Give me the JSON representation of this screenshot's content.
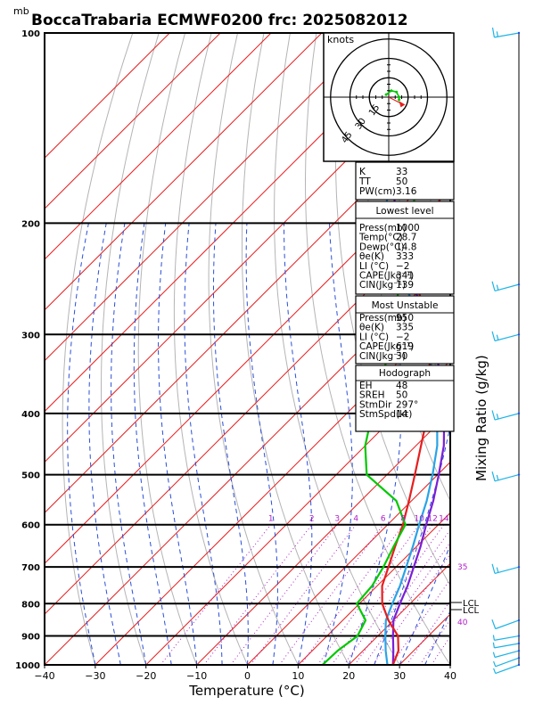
{
  "header": {
    "unit_mb": "mb",
    "title": "BoccaTrabaria ECMWF0200 frc: 2025082012"
  },
  "chart_data": {
    "type": "line",
    "title": "BoccaTrabaria ECMWF0200 frc: 2025082012",
    "xlabel": "Temperature (°C)",
    "ylabel": "mb",
    "right_label": "Mixing Ratio (g/kg)",
    "xlim": [
      -40,
      40
    ],
    "ylim_mb": [
      1000,
      100
    ],
    "log_pressure_axis": true,
    "x_ticks": [
      "−40",
      "−30",
      "−20",
      "−10",
      "0",
      "10",
      "20",
      "30",
      "40"
    ],
    "p_levels": [
      1000,
      900,
      800,
      700,
      600,
      500,
      400,
      300,
      200,
      100
    ],
    "p_labels": [
      "1000",
      "900",
      "800",
      "700",
      "600",
      "500",
      "400",
      "300",
      "200",
      "100"
    ],
    "mixing_ratio_lines": [
      1,
      2,
      3,
      4,
      6,
      8,
      10,
      12,
      14,
      16,
      18,
      20,
      25,
      30,
      35,
      40
    ],
    "mixing_ratio_top_labels": [
      "1",
      "2",
      "3",
      "4",
      "6",
      "8",
      "10",
      "12",
      "14",
      "16",
      "18",
      "20",
      "25",
      "30"
    ],
    "mixing_ratio_side_labels": [
      {
        "text": "35",
        "p": 700
      },
      {
        "text": "40",
        "p": 855
      }
    ],
    "lcl_labels": [
      "LCL",
      "LCL"
    ],
    "series": [
      {
        "name": "Temperature",
        "color": "#e61e1e",
        "points": [
          [
            28.7,
            1000
          ],
          [
            27,
            950
          ],
          [
            24,
            900
          ],
          [
            19,
            850
          ],
          [
            14.5,
            800
          ],
          [
            11,
            750
          ],
          [
            8.5,
            700
          ],
          [
            5.8,
            650
          ],
          [
            3.0,
            600
          ],
          [
            -0.5,
            550
          ],
          [
            -4.5,
            500
          ],
          [
            -9,
            450
          ],
          [
            -14,
            400
          ],
          [
            -21,
            350
          ],
          [
            -29,
            300
          ],
          [
            -36,
            270
          ],
          [
            -42,
            250
          ],
          [
            -52,
            200
          ],
          [
            -58,
            150
          ],
          [
            -62,
            120
          ],
          [
            -63,
            100
          ]
        ]
      },
      {
        "name": "Dewpoint",
        "color": "#00c800",
        "points": [
          [
            14.8,
            1000
          ],
          [
            15,
            950
          ],
          [
            16,
            900
          ],
          [
            14.5,
            850
          ],
          [
            9.5,
            800
          ],
          [
            9,
            750
          ],
          [
            7.5,
            700
          ],
          [
            5.5,
            650
          ],
          [
            3.5,
            600
          ],
          [
            -3,
            550
          ],
          [
            -14,
            500
          ],
          [
            -20,
            450
          ],
          [
            -25,
            400
          ],
          [
            -30,
            350
          ],
          [
            -37,
            300
          ],
          [
            -45,
            250
          ],
          [
            -55,
            200
          ],
          [
            -68,
            150
          ],
          [
            -78,
            120
          ],
          [
            -84,
            100
          ]
        ]
      },
      {
        "name": "Parcel",
        "color": "#7a1fd6",
        "points": [
          [
            28.7,
            1000
          ],
          [
            26,
            950
          ],
          [
            23,
            900
          ],
          [
            20,
            850
          ],
          [
            18,
            800
          ],
          [
            16,
            750
          ],
          [
            13.5,
            700
          ],
          [
            10.8,
            650
          ],
          [
            7.6,
            600
          ],
          [
            4.3,
            550
          ],
          [
            0.2,
            500
          ],
          [
            -4.5,
            450
          ],
          [
            -10.8,
            400
          ],
          [
            -18.8,
            350
          ],
          [
            -28.5,
            300
          ],
          [
            -42.5,
            250
          ],
          [
            -58,
            200
          ],
          [
            -74,
            150
          ],
          [
            -85,
            120
          ],
          [
            -91,
            100
          ]
        ]
      },
      {
        "name": "Virtual temperature",
        "color": "#2aa3e6",
        "points": [
          [
            27.6,
            1000
          ],
          [
            24.5,
            950
          ],
          [
            21.5,
            900
          ],
          [
            18.5,
            850
          ],
          [
            16.5,
            800
          ],
          [
            14.5,
            750
          ],
          [
            12,
            700
          ],
          [
            9.3,
            650
          ],
          [
            6.2,
            600
          ],
          [
            3.0,
            550
          ],
          [
            -1.0,
            500
          ],
          [
            -5.8,
            450
          ],
          [
            -12.2,
            400
          ],
          [
            -20.2,
            350
          ],
          [
            -30,
            300
          ],
          [
            -44,
            250
          ],
          [
            -59.5,
            200
          ],
          [
            -75.5,
            150
          ],
          [
            -86.5,
            120
          ],
          [
            -92.5,
            100
          ]
        ]
      }
    ],
    "hodograph": {
      "units": "knots",
      "ring_labels": [
        "15",
        "30",
        "45"
      ],
      "ring_values": [
        15,
        30,
        45
      ],
      "points": [
        [
          -2,
          2
        ],
        [
          2,
          5
        ],
        [
          6,
          4
        ],
        [
          8,
          0
        ],
        [
          8,
          -2
        ]
      ],
      "storm_motion_dir": 297,
      "storm_motion_kt": 14
    },
    "indices": {
      "general": [
        {
          "label": "K",
          "value": "33"
        },
        {
          "label": "TT",
          "value": "50"
        },
        {
          "label": "PW(cm)",
          "value": "3.16"
        }
      ],
      "lowest_level": {
        "header": "Lowest level",
        "rows": [
          {
            "label": "Press(mb)",
            "value": "1000"
          },
          {
            "label": "Temp(°C)",
            "value": "28.7"
          },
          {
            "label": "Dewp(°C)",
            "value": "14.8"
          },
          {
            "label": "θe(K)",
            "value": "333"
          },
          {
            "label": "LI (°C)",
            "value": "−2"
          },
          {
            "label": "CAPE(Jkg⁻¹)",
            "value": "341"
          },
          {
            "label": "CIN(Jkg⁻¹)",
            "value": "139"
          }
        ]
      },
      "most_unstable": {
        "header": "Most Unstable",
        "rows": [
          {
            "label": "Press(mb)",
            "value": "950"
          },
          {
            "label": "θe(K)",
            "value": "335"
          },
          {
            "label": "LI (°C)",
            "value": "−2"
          },
          {
            "label": "CAPE(Jkg⁻¹)",
            "value": "619"
          },
          {
            "label": "CIN(Jkg⁻¹)",
            "value": "30"
          }
        ]
      },
      "hodograph_box": {
        "header": "Hodograph",
        "rows": [
          {
            "label": "EH",
            "value": "48"
          },
          {
            "label": "SREH",
            "value": "50"
          },
          {
            "label": "StmDir",
            "value": "297°"
          },
          {
            "label": "StmSpd(kt)",
            "value": "14"
          }
        ]
      }
    },
    "wind_barbs": [
      {
        "p": 1000,
        "dir": 250,
        "kt": 5
      },
      {
        "p": 975,
        "dir": 250,
        "kt": 5
      },
      {
        "p": 950,
        "dir": 255,
        "kt": 5
      },
      {
        "p": 925,
        "dir": 260,
        "kt": 5
      },
      {
        "p": 900,
        "dir": 260,
        "kt": 5
      },
      {
        "p": 850,
        "dir": 250,
        "kt": 10
      },
      {
        "p": 700,
        "dir": 255,
        "kt": 15
      },
      {
        "p": 500,
        "dir": 255,
        "kt": 15
      },
      {
        "p": 400,
        "dir": 255,
        "kt": 15
      },
      {
        "p": 300,
        "dir": 255,
        "kt": 15
      },
      {
        "p": 250,
        "dir": 255,
        "kt": 15
      },
      {
        "p": 100,
        "dir": 260,
        "kt": 15
      }
    ],
    "colors": {
      "isotherm": "#e62020",
      "dry_adiabat": "#b4b4b4",
      "moist_adiabat": "#2b4fd6",
      "mixing_ratio": "#b01fc9",
      "mixing_label": "#b01fc9",
      "barb": "#1eb4e6"
    }
  }
}
